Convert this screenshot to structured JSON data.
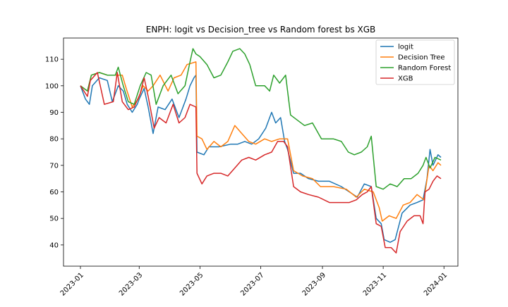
{
  "chart_data": {
    "type": "line",
    "title": "ENPH: logit vs Decision_tree vs Random forest bs XGB",
    "xlabel": "",
    "ylabel": "",
    "xlim": [
      "2022-12-15",
      "2024-01-15"
    ],
    "ylim": [
      32,
      118
    ],
    "x_ticks": [
      "2023-01-01",
      "2023-03-01",
      "2023-05-01",
      "2023-07-01",
      "2023-09-01",
      "2023-11-01",
      "2024-01-01"
    ],
    "x_tick_labels": [
      "2023-01",
      "2023-03",
      "2023-05",
      "2023-07",
      "2023-09",
      "2023-11",
      "2024-01"
    ],
    "y_ticks": [
      40,
      50,
      60,
      70,
      80,
      90,
      100,
      110
    ],
    "y_tick_labels": [
      "40",
      "50",
      "60",
      "70",
      "80",
      "90",
      "100",
      "110"
    ],
    "grid": false,
    "legend_position": "top-right",
    "series": [
      {
        "name": "logit",
        "color": "#1f77b4",
        "points": [
          [
            "2023-01-01",
            100
          ],
          [
            "2023-01-06",
            95
          ],
          [
            "2023-01-10",
            93
          ],
          [
            "2023-01-13",
            100
          ],
          [
            "2023-01-20",
            103
          ],
          [
            "2023-01-28",
            102
          ],
          [
            "2023-02-02",
            94
          ],
          [
            "2023-02-08",
            100
          ],
          [
            "2023-02-13",
            98
          ],
          [
            "2023-02-17",
            93
          ],
          [
            "2023-02-22",
            90
          ],
          [
            "2023-02-27",
            93
          ],
          [
            "2023-03-01",
            95
          ],
          [
            "2023-03-06",
            99
          ],
          [
            "2023-03-10",
            92
          ],
          [
            "2023-03-15",
            82
          ],
          [
            "2023-03-20",
            92
          ],
          [
            "2023-03-27",
            91
          ],
          [
            "2023-04-03",
            95
          ],
          [
            "2023-04-10",
            88
          ],
          [
            "2023-04-17",
            95
          ],
          [
            "2023-04-21",
            100
          ],
          [
            "2023-04-25",
            103
          ],
          [
            "2023-04-27",
            104
          ],
          [
            "2023-04-28",
            75
          ],
          [
            "2023-05-05",
            74
          ],
          [
            "2023-05-10",
            77
          ],
          [
            "2023-05-20",
            77
          ],
          [
            "2023-06-01",
            78
          ],
          [
            "2023-06-08",
            78
          ],
          [
            "2023-06-15",
            79
          ],
          [
            "2023-06-22",
            78
          ],
          [
            "2023-06-29",
            80
          ],
          [
            "2023-07-06",
            84
          ],
          [
            "2023-07-12",
            90
          ],
          [
            "2023-07-16",
            86
          ],
          [
            "2023-07-21",
            88
          ],
          [
            "2023-07-25",
            79
          ],
          [
            "2023-07-28",
            76
          ],
          [
            "2023-08-03",
            67
          ],
          [
            "2023-08-10",
            67
          ],
          [
            "2023-08-18",
            65
          ],
          [
            "2023-08-28",
            64
          ],
          [
            "2023-09-08",
            64
          ],
          [
            "2023-09-20",
            62
          ],
          [
            "2023-09-28",
            60
          ],
          [
            "2023-10-06",
            58
          ],
          [
            "2023-10-13",
            63
          ],
          [
            "2023-10-20",
            62
          ],
          [
            "2023-10-25",
            50
          ],
          [
            "2023-10-30",
            48
          ],
          [
            "2023-11-02",
            42
          ],
          [
            "2023-11-08",
            41
          ],
          [
            "2023-11-13",
            42
          ],
          [
            "2023-11-20",
            52
          ],
          [
            "2023-11-28",
            55
          ],
          [
            "2023-12-05",
            56
          ],
          [
            "2023-12-11",
            57
          ],
          [
            "2023-12-15",
            65
          ],
          [
            "2023-12-18",
            76
          ],
          [
            "2023-12-21",
            70
          ],
          [
            "2023-12-26",
            74
          ],
          [
            "2023-12-29",
            73
          ]
        ]
      },
      {
        "name": "Decision Tree",
        "color": "#ff7f0e",
        "points": [
          [
            "2023-01-01",
            100
          ],
          [
            "2023-01-08",
            98
          ],
          [
            "2023-01-12",
            104
          ],
          [
            "2023-01-20",
            105
          ],
          [
            "2023-01-28",
            104
          ],
          [
            "2023-02-05",
            104
          ],
          [
            "2023-02-12",
            104
          ],
          [
            "2023-02-16",
            99
          ],
          [
            "2023-02-22",
            92
          ],
          [
            "2023-02-28",
            95
          ],
          [
            "2023-03-05",
            100
          ],
          [
            "2023-03-10",
            98
          ],
          [
            "2023-03-15",
            100
          ],
          [
            "2023-03-22",
            104
          ],
          [
            "2023-03-30",
            98
          ],
          [
            "2023-04-05",
            103
          ],
          [
            "2023-04-12",
            104
          ],
          [
            "2023-04-18",
            108
          ],
          [
            "2023-04-27",
            109
          ],
          [
            "2023-04-28",
            81
          ],
          [
            "2023-05-03",
            80
          ],
          [
            "2023-05-08",
            76
          ],
          [
            "2023-05-15",
            79
          ],
          [
            "2023-05-22",
            77
          ],
          [
            "2023-05-29",
            79
          ],
          [
            "2023-06-05",
            85
          ],
          [
            "2023-06-12",
            82
          ],
          [
            "2023-06-19",
            79
          ],
          [
            "2023-06-26",
            78
          ],
          [
            "2023-07-05",
            80
          ],
          [
            "2023-07-12",
            79
          ],
          [
            "2023-07-20",
            80
          ],
          [
            "2023-07-28",
            80
          ],
          [
            "2023-08-03",
            68
          ],
          [
            "2023-08-12",
            66
          ],
          [
            "2023-08-22",
            65
          ],
          [
            "2023-08-30",
            62
          ],
          [
            "2023-09-12",
            62
          ],
          [
            "2023-09-25",
            61
          ],
          [
            "2023-10-05",
            58
          ],
          [
            "2023-10-13",
            61
          ],
          [
            "2023-10-22",
            60
          ],
          [
            "2023-10-28",
            54
          ],
          [
            "2023-10-31",
            49
          ],
          [
            "2023-11-07",
            51
          ],
          [
            "2023-11-14",
            50
          ],
          [
            "2023-11-21",
            55
          ],
          [
            "2023-11-28",
            56
          ],
          [
            "2023-12-05",
            59
          ],
          [
            "2023-12-12",
            57
          ],
          [
            "2023-12-17",
            70
          ],
          [
            "2023-12-21",
            68
          ],
          [
            "2023-12-26",
            71
          ],
          [
            "2023-12-29",
            70
          ]
        ]
      },
      {
        "name": "Random Forest",
        "color": "#2ca02c",
        "points": [
          [
            "2023-01-01",
            100
          ],
          [
            "2023-01-08",
            98
          ],
          [
            "2023-01-12",
            104
          ],
          [
            "2023-01-20",
            105
          ],
          [
            "2023-01-28",
            104
          ],
          [
            "2023-02-05",
            104
          ],
          [
            "2023-02-08",
            107
          ],
          [
            "2023-02-13",
            100
          ],
          [
            "2023-02-18",
            94
          ],
          [
            "2023-02-24",
            93
          ],
          [
            "2023-03-02",
            100
          ],
          [
            "2023-03-08",
            105
          ],
          [
            "2023-03-13",
            104
          ],
          [
            "2023-03-18",
            93
          ],
          [
            "2023-03-25",
            100
          ],
          [
            "2023-04-02",
            104
          ],
          [
            "2023-04-09",
            97
          ],
          [
            "2023-04-16",
            100
          ],
          [
            "2023-04-21",
            109
          ],
          [
            "2023-04-24",
            114
          ],
          [
            "2023-04-27",
            112
          ],
          [
            "2023-05-01",
            111
          ],
          [
            "2023-05-08",
            108
          ],
          [
            "2023-05-15",
            103
          ],
          [
            "2023-05-22",
            104
          ],
          [
            "2023-05-29",
            109
          ],
          [
            "2023-06-03",
            113
          ],
          [
            "2023-06-10",
            114
          ],
          [
            "2023-06-15",
            112
          ],
          [
            "2023-06-20",
            108
          ],
          [
            "2023-06-26",
            100
          ],
          [
            "2023-07-05",
            100
          ],
          [
            "2023-07-10",
            98
          ],
          [
            "2023-07-14",
            104
          ],
          [
            "2023-07-20",
            101
          ],
          [
            "2023-07-26",
            104
          ],
          [
            "2023-07-31",
            89
          ],
          [
            "2023-08-07",
            87
          ],
          [
            "2023-08-14",
            85
          ],
          [
            "2023-08-22",
            86
          ],
          [
            "2023-08-31",
            80
          ],
          [
            "2023-09-12",
            80
          ],
          [
            "2023-09-20",
            79
          ],
          [
            "2023-09-27",
            75
          ],
          [
            "2023-10-03",
            74
          ],
          [
            "2023-10-10",
            75
          ],
          [
            "2023-10-16",
            77
          ],
          [
            "2023-10-20",
            81
          ],
          [
            "2023-10-25",
            62
          ],
          [
            "2023-11-01",
            61
          ],
          [
            "2023-11-08",
            63
          ],
          [
            "2023-11-15",
            62
          ],
          [
            "2023-11-22",
            65
          ],
          [
            "2023-11-29",
            65
          ],
          [
            "2023-12-06",
            67
          ],
          [
            "2023-12-11",
            70
          ],
          [
            "2023-12-14",
            73
          ],
          [
            "2023-12-18",
            69
          ],
          [
            "2023-12-23",
            73
          ],
          [
            "2023-12-29",
            72
          ]
        ]
      },
      {
        "name": "XGB",
        "color": "#d62728",
        "points": [
          [
            "2023-01-01",
            100
          ],
          [
            "2023-01-08",
            96
          ],
          [
            "2023-01-11",
            102
          ],
          [
            "2023-01-18",
            105
          ],
          [
            "2023-01-25",
            93
          ],
          [
            "2023-02-03",
            94
          ],
          [
            "2023-02-07",
            105
          ],
          [
            "2023-02-12",
            94
          ],
          [
            "2023-02-18",
            91
          ],
          [
            "2023-02-24",
            92
          ],
          [
            "2023-03-02",
            97
          ],
          [
            "2023-03-06",
            103
          ],
          [
            "2023-03-10",
            96
          ],
          [
            "2023-03-16",
            84
          ],
          [
            "2023-03-21",
            88
          ],
          [
            "2023-03-28",
            86
          ],
          [
            "2023-04-04",
            93
          ],
          [
            "2023-04-10",
            86
          ],
          [
            "2023-04-16",
            88
          ],
          [
            "2023-04-21",
            93
          ],
          [
            "2023-04-27",
            92
          ],
          [
            "2023-04-28",
            67
          ],
          [
            "2023-05-03",
            63
          ],
          [
            "2023-05-08",
            66
          ],
          [
            "2023-05-15",
            67
          ],
          [
            "2023-05-22",
            67
          ],
          [
            "2023-05-29",
            66
          ],
          [
            "2023-06-05",
            69
          ],
          [
            "2023-06-12",
            72
          ],
          [
            "2023-06-19",
            73
          ],
          [
            "2023-06-26",
            72
          ],
          [
            "2023-07-05",
            74
          ],
          [
            "2023-07-12",
            75
          ],
          [
            "2023-07-18",
            79
          ],
          [
            "2023-07-24",
            79
          ],
          [
            "2023-07-28",
            77
          ],
          [
            "2023-08-03",
            62
          ],
          [
            "2023-08-10",
            60
          ],
          [
            "2023-08-18",
            59
          ],
          [
            "2023-08-28",
            58
          ],
          [
            "2023-09-08",
            56
          ],
          [
            "2023-09-20",
            56
          ],
          [
            "2023-09-28",
            56
          ],
          [
            "2023-10-05",
            57
          ],
          [
            "2023-10-11",
            59
          ],
          [
            "2023-10-16",
            60
          ],
          [
            "2023-10-20",
            62
          ],
          [
            "2023-10-25",
            48
          ],
          [
            "2023-10-30",
            47
          ],
          [
            "2023-11-03",
            39
          ],
          [
            "2023-11-09",
            39
          ],
          [
            "2023-11-14",
            37
          ],
          [
            "2023-11-18",
            45
          ],
          [
            "2023-11-25",
            49
          ],
          [
            "2023-12-02",
            51
          ],
          [
            "2023-12-08",
            51
          ],
          [
            "2023-12-11",
            48
          ],
          [
            "2023-12-13",
            60
          ],
          [
            "2023-12-17",
            61
          ],
          [
            "2023-12-21",
            64
          ],
          [
            "2023-12-25",
            66
          ],
          [
            "2023-12-29",
            65
          ]
        ]
      }
    ]
  }
}
